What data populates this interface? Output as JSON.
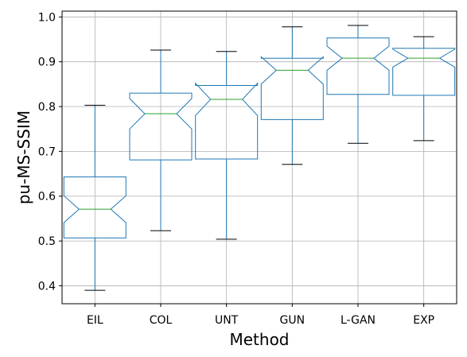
{
  "chart_data": {
    "type": "box",
    "notched": true,
    "xlabel": "Method",
    "ylabel": "pu-MS-SSIM",
    "ylim": [
      0.36,
      1.013
    ],
    "yticks": [
      "0.4",
      "0.5",
      "0.6",
      "0.7",
      "0.8",
      "0.9",
      "1.0"
    ],
    "grid": true,
    "categories": [
      "EIL",
      "COL",
      "UNT",
      "GUN",
      "L-GAN",
      "EXP"
    ],
    "boxes": [
      {
        "name": "EIL",
        "whisker_low": 0.39,
        "q1": 0.507,
        "median": 0.571,
        "q3": 0.643,
        "whisker_high": 0.803,
        "notch_low": 0.541,
        "notch_high": 0.601
      },
      {
        "name": "COL",
        "whisker_low": 0.523,
        "q1": 0.681,
        "median": 0.784,
        "q3": 0.83,
        "whisker_high": 0.926,
        "notch_low": 0.75,
        "notch_high": 0.818
      },
      {
        "name": "UNT",
        "whisker_low": 0.504,
        "q1": 0.683,
        "median": 0.816,
        "q3": 0.847,
        "whisker_high": 0.923,
        "notch_low": 0.78,
        "notch_high": 0.852
      },
      {
        "name": "GUN",
        "whisker_low": 0.671,
        "q1": 0.771,
        "median": 0.881,
        "q3": 0.908,
        "whisker_high": 0.978,
        "notch_low": 0.85,
        "notch_high": 0.911
      },
      {
        "name": "L-GAN",
        "whisker_low": 0.718,
        "q1": 0.827,
        "median": 0.908,
        "q3": 0.953,
        "whisker_high": 0.981,
        "notch_low": 0.881,
        "notch_high": 0.935
      },
      {
        "name": "EXP",
        "whisker_low": 0.724,
        "q1": 0.825,
        "median": 0.908,
        "q3": 0.93,
        "whisker_high": 0.956,
        "notch_low": 0.888,
        "notch_high": 0.928
      }
    ],
    "colors": {
      "box": "#1f77b4",
      "median": "#2ca02c",
      "whisker_cap": "#000000",
      "grid": "#b0b0b0"
    }
  }
}
